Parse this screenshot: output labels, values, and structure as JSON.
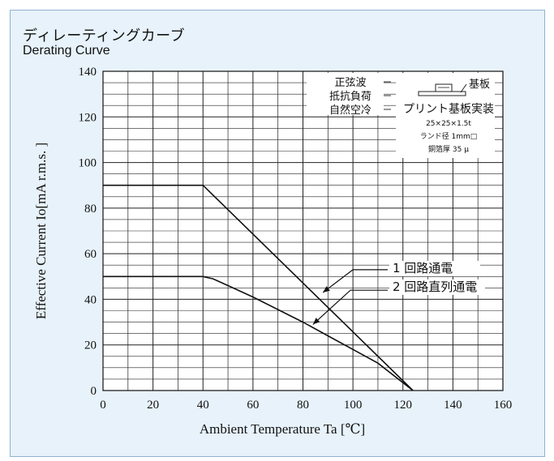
{
  "title_jp": "ディレーティングカーブ",
  "title_en": "Derating Curve",
  "conditions": {
    "left_lines": [
      "正弦波",
      "抵抗負荷",
      "自然空冷"
    ],
    "board_label": "基板",
    "board_title": "プリント基板実装",
    "board_size": "25×25×1.5t",
    "land": "ランド径 1mm□",
    "copper": "銅箔厚 35 μ"
  },
  "chart_data": {
    "type": "line",
    "xlabel": "Ambient Temperature Ta [℃]",
    "ylabel": "Effective Current Io[mA  r.m.s. ]",
    "xlim": [
      0,
      160
    ],
    "ylim": [
      0,
      140
    ],
    "x_ticks": [
      0,
      20,
      40,
      60,
      80,
      100,
      120,
      140,
      160
    ],
    "y_ticks": [
      0,
      20,
      40,
      60,
      80,
      100,
      120,
      140
    ],
    "grid": true,
    "series": [
      {
        "name": "1 回路通電",
        "points": [
          [
            0,
            90
          ],
          [
            40,
            90
          ],
          [
            124,
            0
          ]
        ]
      },
      {
        "name": "2 回路直列通電",
        "points": [
          [
            0,
            50
          ],
          [
            40,
            50
          ],
          [
            44,
            49
          ],
          [
            50,
            46
          ],
          [
            60,
            41
          ],
          [
            70,
            35.5
          ],
          [
            80,
            30
          ],
          [
            90,
            24
          ],
          [
            100,
            18
          ],
          [
            110,
            12
          ],
          [
            124,
            0
          ]
        ]
      }
    ]
  }
}
